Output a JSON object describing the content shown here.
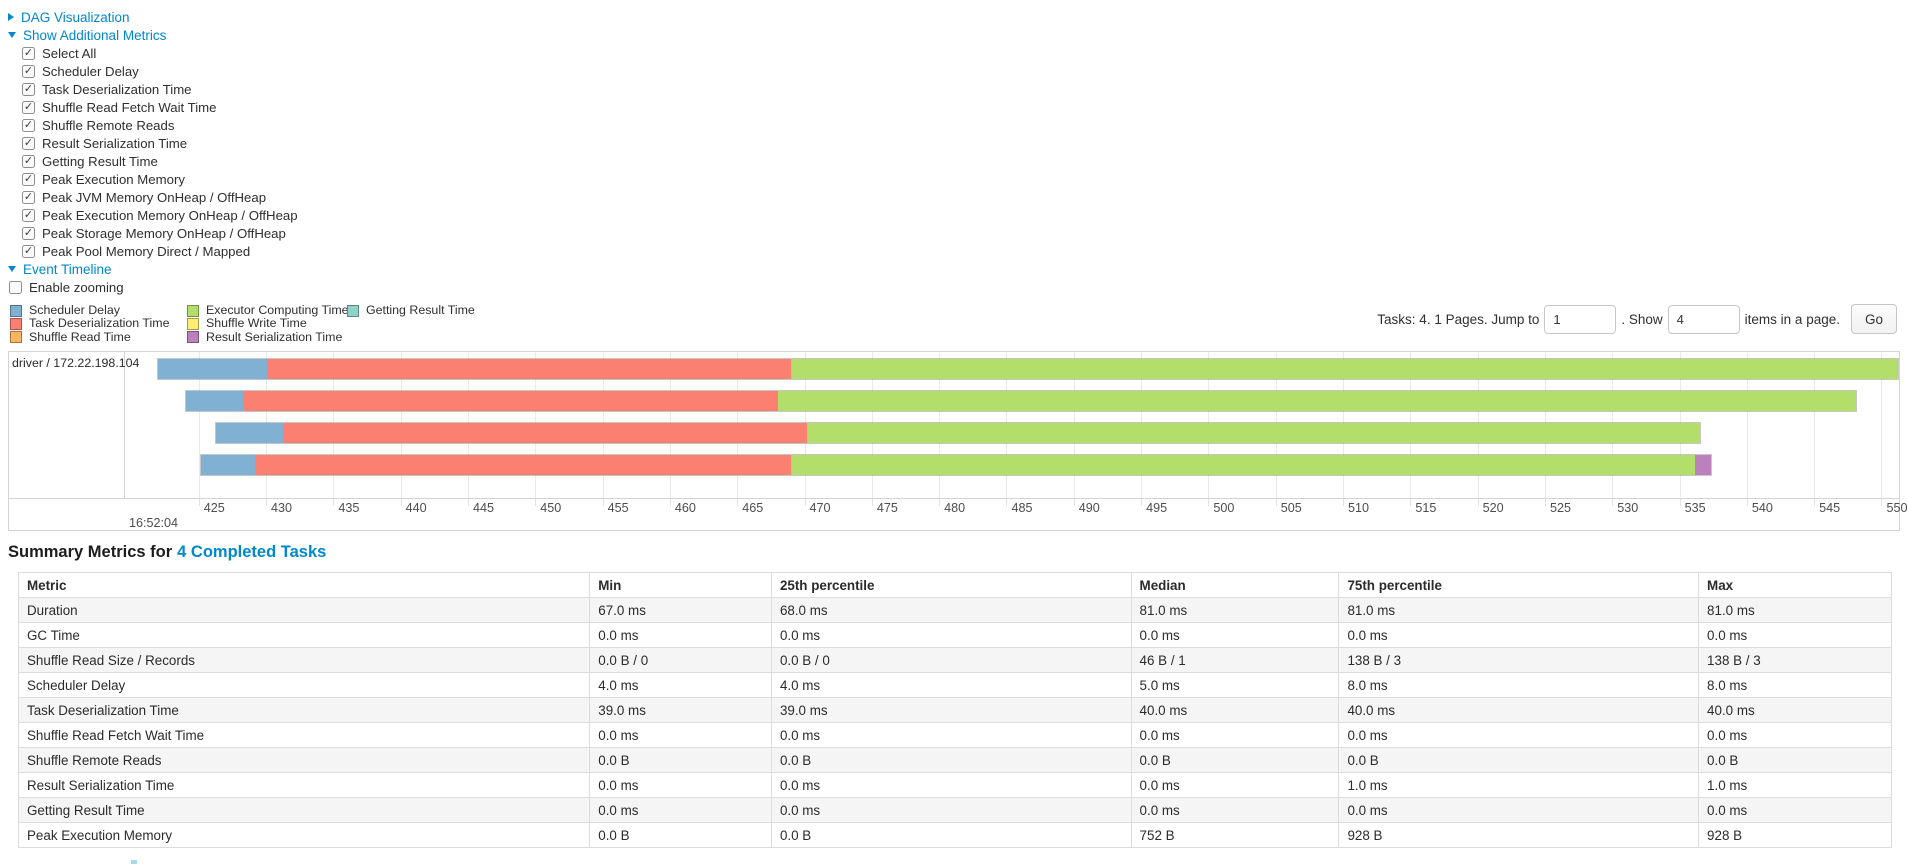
{
  "colors": {
    "scheduler_delay": "#80B1D3",
    "task_deserialization": "#FB8072",
    "shuffle_read": "#FDB462",
    "executor_computing": "#B3DE69",
    "shuffle_write": "#FFED6F",
    "result_serialization": "#BC80BD",
    "getting_result": "#8DD3C7",
    "link": "#0088cc"
  },
  "toggles": [
    {
      "label": "DAG Visualization",
      "state": "collapsed"
    },
    {
      "label": "Show Additional Metrics",
      "state": "expanded"
    }
  ],
  "additional_metrics": {
    "items": [
      "Select All",
      "Scheduler Delay",
      "Task Deserialization Time",
      "Shuffle Read Fetch Wait Time",
      "Shuffle Remote Reads",
      "Result Serialization Time",
      "Getting Result Time",
      "Peak Execution Memory",
      "Peak JVM Memory OnHeap / OffHeap",
      "Peak Execution Memory OnHeap / OffHeap",
      "Peak Storage Memory OnHeap / OffHeap",
      "Peak Pool Memory Direct / Mapped"
    ],
    "all_checked": true
  },
  "event_timeline": {
    "toggle_label": "Event Timeline",
    "enable_zooming_label": "Enable zooming",
    "enable_zooming_checked": false,
    "legend_columns": [
      [
        {
          "label": "Scheduler Delay",
          "color_key": "scheduler_delay"
        },
        {
          "label": "Task Deserialization Time",
          "color_key": "task_deserialization"
        },
        {
          "label": "Shuffle Read Time",
          "color_key": "shuffle_read"
        }
      ],
      [
        {
          "label": "Executor Computing Time",
          "color_key": "executor_computing"
        },
        {
          "label": "Shuffle Write Time",
          "color_key": "shuffle_write"
        },
        {
          "label": "Result Serialization Time",
          "color_key": "result_serialization"
        }
      ],
      [
        {
          "label": "Getting Result Time",
          "color_key": "getting_result"
        }
      ]
    ],
    "pagination": {
      "prefix": "Tasks: 4. 1 Pages. Jump to",
      "jump_value": "1",
      "show_label": ". Show",
      "show_value": "4",
      "suffix": "items in a page.",
      "go_label": "Go"
    },
    "chart_data": {
      "type": "timeline",
      "group_label": "driver / 172.22.198.104",
      "axis": {
        "min": 419.6,
        "max": 551.3,
        "unit": "ms after 16:52:04",
        "major_label": "16:52:04",
        "tick_interval": 5,
        "ticks": [
          425,
          430,
          435,
          440,
          445,
          450,
          455,
          460,
          465,
          470,
          475,
          480,
          485,
          490,
          495,
          500,
          505,
          510,
          515,
          520,
          525,
          530,
          535,
          540,
          545,
          550
        ]
      },
      "tasks": [
        {
          "segments": [
            {
              "type": "scheduler_delay",
              "start": 421.9,
              "end": 430.0
            },
            {
              "type": "task_deserialization",
              "start": 430.0,
              "end": 469.0
            },
            {
              "type": "executor_computing",
              "start": 469.0,
              "end": 551.3
            }
          ]
        },
        {
          "segments": [
            {
              "type": "scheduler_delay",
              "start": 424.0,
              "end": 428.2
            },
            {
              "type": "task_deserialization",
              "start": 428.2,
              "end": 468.0
            },
            {
              "type": "executor_computing",
              "start": 468.0,
              "end": 548.2
            }
          ]
        },
        {
          "segments": [
            {
              "type": "scheduler_delay",
              "start": 426.2,
              "end": 431.2
            },
            {
              "type": "task_deserialization",
              "start": 431.2,
              "end": 470.2
            },
            {
              "type": "executor_computing",
              "start": 470.2,
              "end": 536.6
            }
          ]
        },
        {
          "segments": [
            {
              "type": "scheduler_delay",
              "start": 425.1,
              "end": 429.1
            },
            {
              "type": "task_deserialization",
              "start": 429.1,
              "end": 469.0
            },
            {
              "type": "executor_computing",
              "start": 469.0,
              "end": 536.2
            },
            {
              "type": "result_serialization",
              "start": 536.2,
              "end": 537.4
            }
          ]
        }
      ]
    }
  },
  "summary": {
    "heading_prefix": "Summary Metrics for",
    "heading_link": "4 Completed Tasks",
    "table": {
      "columns": [
        "Metric",
        "Min",
        "25th percentile",
        "Median",
        "75th percentile",
        "Max"
      ],
      "rows": [
        [
          "Duration",
          "67.0 ms",
          "68.0 ms",
          "81.0 ms",
          "81.0 ms",
          "81.0 ms"
        ],
        [
          "GC Time",
          "0.0 ms",
          "0.0 ms",
          "0.0 ms",
          "0.0 ms",
          "0.0 ms"
        ],
        [
          "Shuffle Read Size / Records",
          "0.0 B / 0",
          "0.0 B / 0",
          "46 B / 1",
          "138 B / 3",
          "138 B / 3"
        ],
        [
          "Scheduler Delay",
          "4.0 ms",
          "4.0 ms",
          "5.0 ms",
          "8.0 ms",
          "8.0 ms"
        ],
        [
          "Task Deserialization Time",
          "39.0 ms",
          "39.0 ms",
          "40.0 ms",
          "40.0 ms",
          "40.0 ms"
        ],
        [
          "Shuffle Read Fetch Wait Time",
          "0.0 ms",
          "0.0 ms",
          "0.0 ms",
          "0.0 ms",
          "0.0 ms"
        ],
        [
          "Shuffle Remote Reads",
          "0.0 B",
          "0.0 B",
          "0.0 B",
          "0.0 B",
          "0.0 B"
        ],
        [
          "Result Serialization Time",
          "0.0 ms",
          "0.0 ms",
          "0.0 ms",
          "1.0 ms",
          "1.0 ms"
        ],
        [
          "Getting Result Time",
          "0.0 ms",
          "0.0 ms",
          "0.0 ms",
          "0.0 ms",
          "0.0 ms"
        ],
        [
          "Peak Execution Memory",
          "0.0 B",
          "0.0 B",
          "752 B",
          "928 B",
          "928 B"
        ]
      ]
    }
  }
}
